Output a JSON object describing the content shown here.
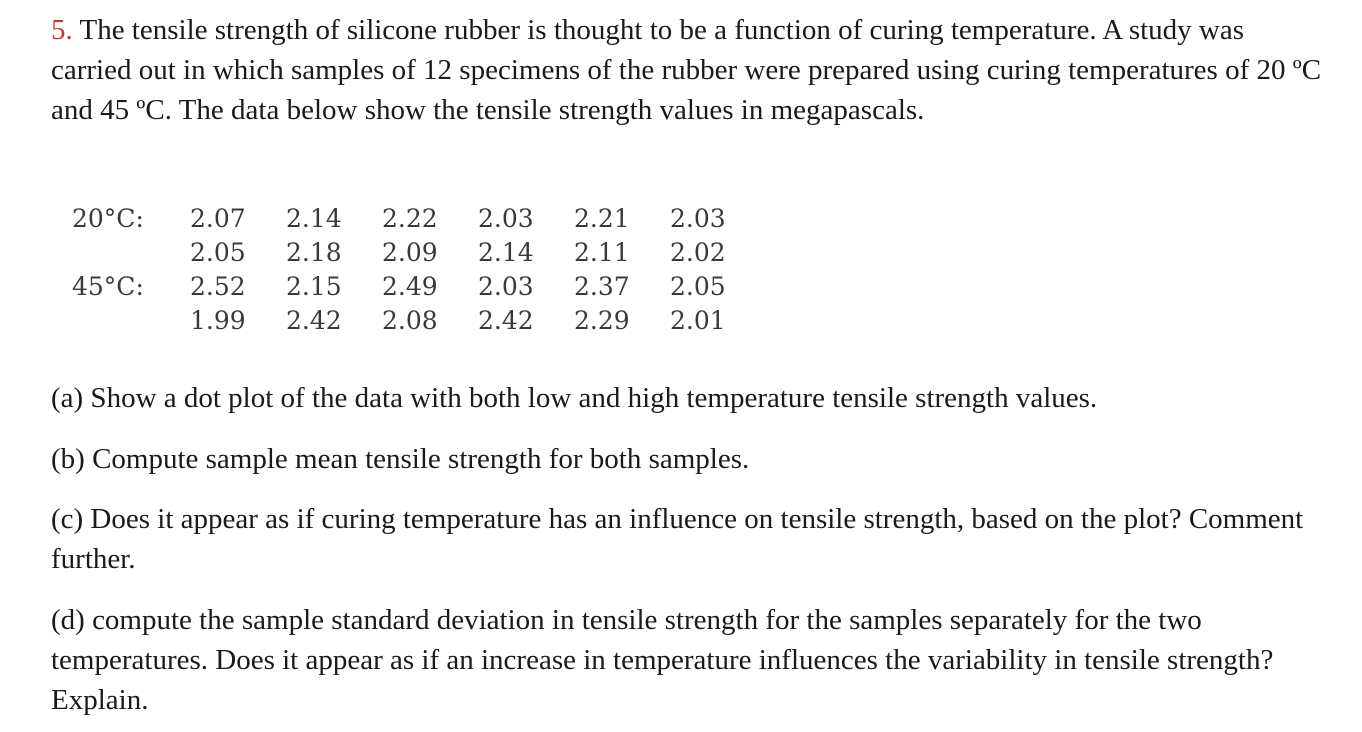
{
  "problem": {
    "number": "5.",
    "intro": " The tensile strength of silicone rubber is thought to be a function of curing temperature. A study was carried out in which samples of 12 specimens of the rubber were prepared using curing temperatures of 20 ºC and 45 ºC. The data below show the tensile strength values in megapascals."
  },
  "data_table": {
    "rows": [
      {
        "label": "20°C:",
        "values": [
          "2.07",
          "2.14",
          "2.22",
          "2.03",
          "2.21",
          "2.03"
        ]
      },
      {
        "label": "",
        "values": [
          "2.05",
          "2.18",
          "2.09",
          "2.14",
          "2.11",
          "2.02"
        ]
      },
      {
        "label": "45°C:",
        "values": [
          "2.52",
          "2.15",
          "2.49",
          "2.03",
          "2.37",
          "2.05"
        ]
      },
      {
        "label": "",
        "values": [
          "1.99",
          "2.42",
          "2.08",
          "2.42",
          "2.29",
          "2.01"
        ]
      }
    ]
  },
  "questions": {
    "a": "(a) Show a dot plot of the data with both low and high temperature tensile strength values.",
    "b": "(b) Compute sample mean tensile strength for both samples.",
    "c": "(c) Does it appear as if curing temperature has an influence on tensile strength, based on the plot? Comment further.",
    "d": "(d) compute the sample standard deviation in tensile strength for the samples separately for the two temperatures. Does it appear as if an increase in temperature influences the variability in tensile strength? Explain."
  }
}
